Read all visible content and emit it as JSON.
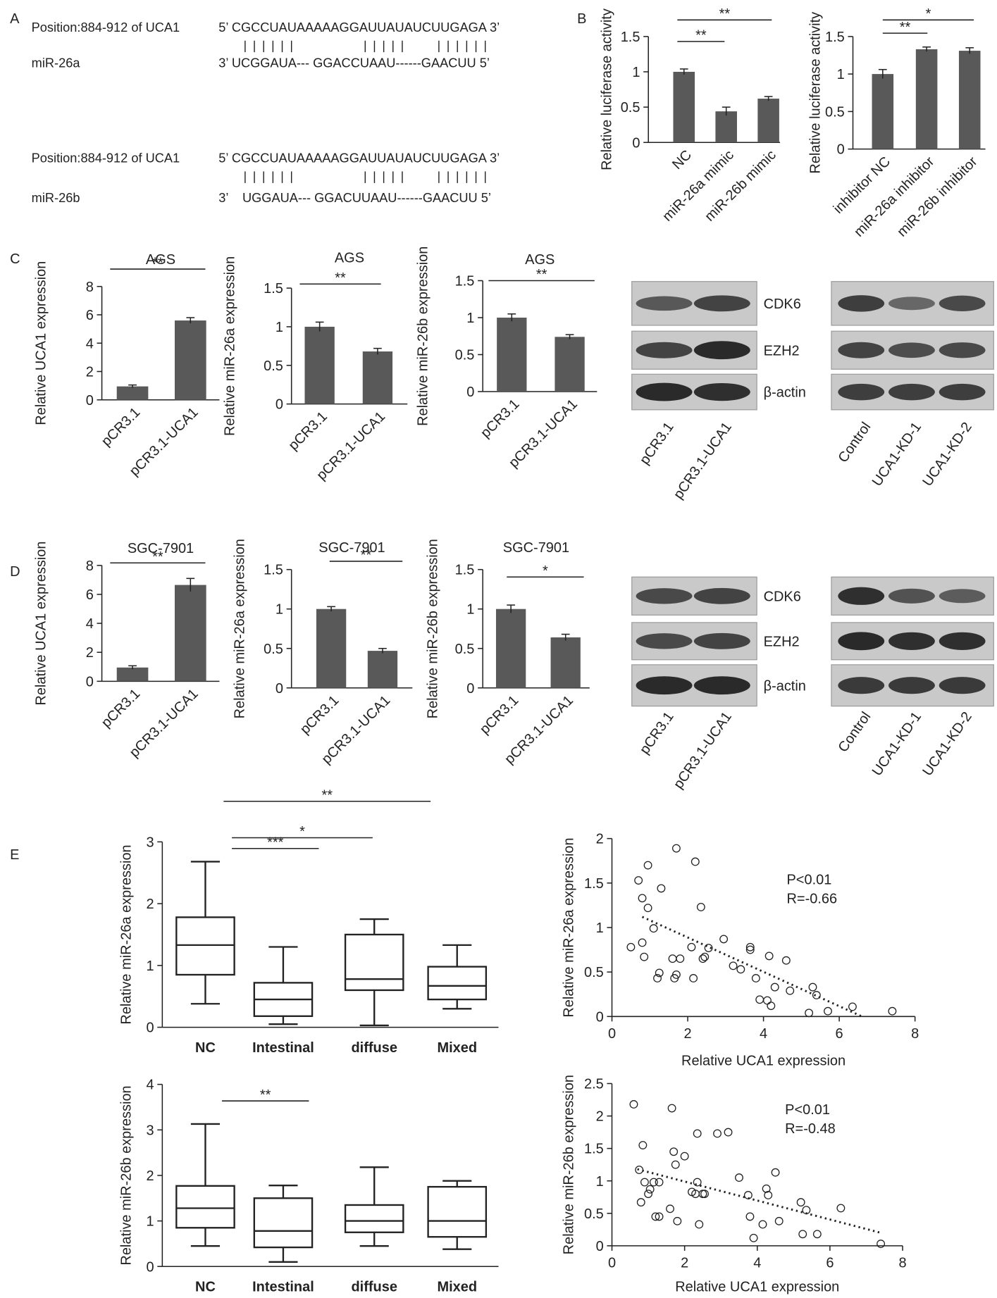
{
  "panel_labels": [
    "A",
    "B",
    "C",
    "D",
    "E"
  ],
  "alignment": [
    {
      "position": "Position:884-912 of UCA1",
      "target": "5’ CGCCUAUAAAAAGGAUUAUAUCUUGAGA 3’",
      "mirna": "miR-26a",
      "mirna_seq": "3’ UCGGAUA--- GGACCUAAU------GAACUU 5’"
    },
    {
      "position": "Position:884-912 of UCA1",
      "target": "5’ CGCCUAUAAAAAGGAUUAUAUCUUGAGA 3’",
      "mirna": "miR-26b",
      "mirna_seq": "3’    UGGAUA--- GGACUUAAU------GAACUU 5’"
    }
  ],
  "blots": {
    "bands": [
      "CDK6",
      "EZH2",
      "β-actin"
    ],
    "overexpression_lanes": [
      "pCR3.1",
      "pCR3.1-UCA1"
    ],
    "knockdown_lanes": [
      "Control",
      "UCA1-KD-1",
      "UCA1-KD-2"
    ]
  },
  "chart_data": [
    {
      "type": "bar",
      "y_label": "Relative luciferase activity",
      "categories": [
        "NC",
        "miR-26a mimic",
        "miR-26b mimic"
      ],
      "values": [
        1,
        0.44,
        0.62
      ],
      "errors": [
        0.04,
        0.06,
        0.03
      ],
      "color": "#595959",
      "ylim": [
        0,
        1.5
      ],
      "yticks": [
        0,
        0.5,
        1,
        1.5
      ],
      "significance": [
        "**",
        "**"
      ]
    },
    {
      "type": "bar",
      "y_label": "Relative luciferase activity",
      "categories": [
        "inhibitor NC",
        "miR-26a inhibitor",
        "miR-26b inhibitor"
      ],
      "values": [
        1,
        1.33,
        1.31
      ],
      "errors": [
        0.06,
        0.03,
        0.04
      ],
      "color": "#595959",
      "ylim": [
        0,
        1.5
      ],
      "yticks": [
        0,
        0.5,
        1,
        1.5
      ],
      "significance": [
        "**",
        "*"
      ]
    },
    {
      "type": "bar",
      "title": "AGS",
      "y_label": "Relative UCA1 expression",
      "categories": [
        "pCR3.1",
        "pCR3.1-UCA1"
      ],
      "values": [
        0.95,
        5.6
      ],
      "errors": [
        0.1,
        0.2
      ],
      "color": "#595959",
      "ylim": [
        0,
        8
      ],
      "yticks": [
        0,
        2,
        4,
        6,
        8
      ],
      "significance": [
        "**"
      ]
    },
    {
      "type": "bar",
      "title": "AGS",
      "y_label": "Relative miR-26a expression",
      "categories": [
        "pCR3.1",
        "pCR3.1-UCA1"
      ],
      "values": [
        1,
        0.68
      ],
      "errors": [
        0.06,
        0.04
      ],
      "color": "#595959",
      "ylim": [
        0,
        1.5
      ],
      "yticks": [
        0,
        0.5,
        1,
        1.5
      ],
      "significance": [
        "**"
      ]
    },
    {
      "type": "bar",
      "title": "AGS",
      "y_label": "Relative miR-26b expression",
      "categories": [
        "pCR3.1",
        "pCR3.1-UCA1"
      ],
      "values": [
        1,
        0.74
      ],
      "errors": [
        0.05,
        0.03
      ],
      "color": "#595959",
      "ylim": [
        0,
        1.5
      ],
      "yticks": [
        0,
        0.5,
        1,
        1.5
      ],
      "significance": [
        "**"
      ]
    },
    {
      "type": "bar",
      "title": "SGC-7901",
      "y_label": "Relative UCA1 expression",
      "categories": [
        "pCR3.1",
        "pCR3.1-UCA1"
      ],
      "values": [
        0.95,
        6.65
      ],
      "errors": [
        0.12,
        0.45
      ],
      "color": "#595959",
      "ylim": [
        0,
        8
      ],
      "yticks": [
        0,
        2,
        4,
        6,
        8
      ],
      "significance": [
        "**"
      ]
    },
    {
      "type": "bar",
      "title": "SGC-7901",
      "y_label": "Relative miR-26a expression",
      "categories": [
        "pCR3.1",
        "pCR3.1-UCA1"
      ],
      "values": [
        1,
        0.47
      ],
      "errors": [
        0.03,
        0.03
      ],
      "color": "#595959",
      "ylim": [
        0,
        1.5
      ],
      "yticks": [
        0,
        0.5,
        1,
        1.5
      ],
      "significance": [
        "**"
      ]
    },
    {
      "type": "bar",
      "title": "SGC-7901",
      "y_label": "Relative miR-26b expression",
      "categories": [
        "pCR3.1",
        "pCR3.1-UCA1"
      ],
      "values": [
        1,
        0.64
      ],
      "errors": [
        0.05,
        0.04
      ],
      "color": "#595959",
      "ylim": [
        0,
        1.5
      ],
      "yticks": [
        0,
        0.5,
        1,
        1.5
      ],
      "significance": [
        "*"
      ]
    },
    {
      "type": "box",
      "y_label": "Relative miR-26a expression",
      "categories": [
        "NC",
        "Intestinal",
        "diffuse",
        "Mixed"
      ],
      "min": [
        0.38,
        0.05,
        0.03,
        0.3
      ],
      "q1": [
        0.85,
        0.18,
        0.6,
        0.45
      ],
      "median": [
        1.33,
        0.45,
        0.78,
        0.67
      ],
      "q3": [
        1.78,
        0.72,
        1.5,
        0.98
      ],
      "max": [
        2.68,
        1.3,
        1.75,
        1.33
      ],
      "ylim": [
        0,
        3
      ],
      "yticks": [
        0,
        1,
        2,
        3
      ],
      "significance": [
        "**",
        "*",
        "***"
      ]
    },
    {
      "type": "scatter",
      "x_label": "Relative UCA1 expression",
      "y_label": "Relative miR-26a expression",
      "annotations": [
        "P<0.01",
        "R=-0.66"
      ],
      "x": [
        0.5,
        0.7,
        0.8,
        0.8,
        0.85,
        0.95,
        0.95,
        1.1,
        1.2,
        1.25,
        1.3,
        1.6,
        1.65,
        1.7,
        1.7,
        1.8,
        2.1,
        2.15,
        2.2,
        2.35,
        2.4,
        2.45,
        2.55,
        2.95,
        3.2,
        3.4,
        3.65,
        3.65,
        3.8,
        3.9,
        4.1,
        4.15,
        4.2,
        4.3,
        4.6,
        4.7,
        5.2,
        5.3,
        5.4,
        5.7,
        6.35,
        7.4
      ],
      "y": [
        0.78,
        1.53,
        1.33,
        0.83,
        0.67,
        1.22,
        1.7,
        0.99,
        0.43,
        0.49,
        1.44,
        0.65,
        0.43,
        1.89,
        0.47,
        0.65,
        0.78,
        0.43,
        1.74,
        1.23,
        0.65,
        0.67,
        0.77,
        0.87,
        0.57,
        0.53,
        0.78,
        0.75,
        0.43,
        0.19,
        0.18,
        0.68,
        0.12,
        0.33,
        0.63,
        0.29,
        0.04,
        0.33,
        0.24,
        0.06,
        0.11,
        0.06
      ],
      "trendline": {
        "x": [
          0.8,
          6.6
        ],
        "y": [
          1.12,
          0
        ]
      },
      "xlim": [
        0,
        8
      ],
      "xticks": [
        0,
        2,
        4,
        6,
        8
      ],
      "ylim": [
        0,
        2
      ],
      "yticks": [
        0,
        0.5,
        1,
        1.5,
        2
      ]
    },
    {
      "type": "box",
      "y_label": "Relative miR-26b expression",
      "categories": [
        "NC",
        "Intestinal",
        "diffuse",
        "Mixed"
      ],
      "min": [
        0.45,
        0.1,
        0.45,
        0.38
      ],
      "q1": [
        0.85,
        0.42,
        0.75,
        0.65
      ],
      "median": [
        1.28,
        0.78,
        1.0,
        1.0
      ],
      "q3": [
        1.77,
        1.5,
        1.35,
        1.75
      ],
      "max": [
        3.13,
        1.78,
        2.18,
        1.88
      ],
      "ylim": [
        0,
        4
      ],
      "yticks": [
        0,
        1,
        2,
        3,
        4
      ],
      "significance": [
        "**"
      ]
    },
    {
      "type": "scatter",
      "x_label": "Relative UCA1 expression",
      "y_label": "Relative miR-26b expression",
      "annotations": [
        "P<0.01",
        "R=-0.48"
      ],
      "x": [
        0.6,
        0.75,
        0.8,
        0.85,
        0.9,
        1.0,
        1.05,
        1.15,
        1.2,
        1.3,
        1.3,
        1.6,
        1.65,
        1.7,
        1.75,
        1.8,
        2.0,
        2.2,
        2.3,
        2.35,
        2.4,
        2.35,
        2.5,
        2.55,
        2.9,
        3.2,
        3.5,
        3.75,
        3.8,
        3.9,
        4.15,
        4.25,
        4.3,
        4.5,
        4.6,
        5.2,
        5.35,
        5.25,
        5.65,
        6.3,
        7.4
      ],
      "y": [
        2.18,
        1.17,
        0.67,
        1.55,
        0.98,
        0.8,
        0.87,
        0.98,
        0.45,
        0.45,
        0.98,
        0.57,
        2.12,
        1.45,
        1.25,
        0.38,
        1.38,
        0.83,
        0.8,
        1.73,
        0.33,
        0.98,
        0.8,
        0.8,
        1.73,
        1.75,
        1.05,
        0.78,
        0.45,
        0.12,
        0.33,
        0.88,
        0.78,
        1.13,
        0.38,
        0.67,
        0.55,
        0.18,
        0.18,
        0.58,
        0.03
      ],
      "trendline": {
        "x": [
          0.7,
          7.4
        ],
        "y": [
          1.18,
          0.2
        ]
      },
      "xlim": [
        0,
        8
      ],
      "xticks": [
        0,
        2,
        4,
        6,
        8
      ],
      "ylim": [
        0,
        2.5
      ],
      "yticks": [
        0,
        0.5,
        1,
        1.5,
        2,
        2.5
      ]
    }
  ]
}
